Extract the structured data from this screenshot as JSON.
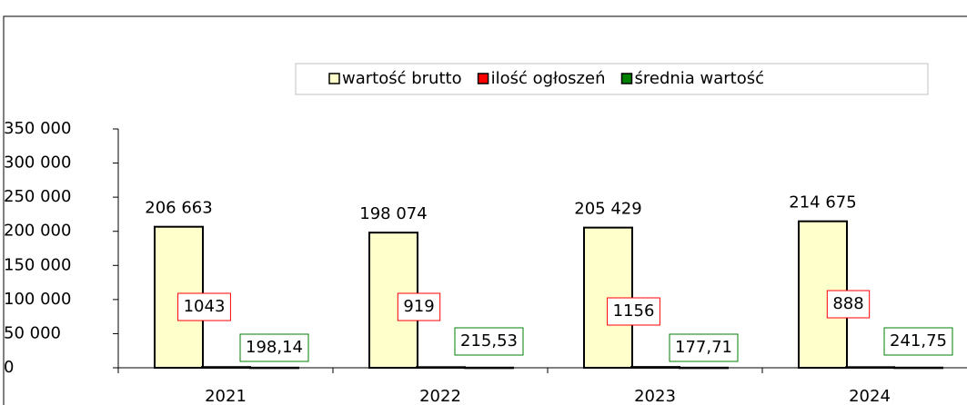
{
  "chart_data": {
    "type": "bar",
    "categories": [
      "2021",
      "2022",
      "2023",
      "2024"
    ],
    "series": [
      {
        "name": "wartość brutto",
        "color": "#ffffcc",
        "values": [
          206663,
          198074,
          205429,
          214675
        ],
        "value_labels": [
          "206 663",
          "198 074",
          "205 429",
          "214 675"
        ]
      },
      {
        "name": "ilość ogłoszeń",
        "color": "#ff0000",
        "values": [
          1043,
          919,
          1156,
          888
        ]
      },
      {
        "name": "średnia wartość",
        "color": "#008000",
        "values": [
          198.14,
          215.53,
          177.71,
          241.75
        ],
        "value_labels": [
          "198,14",
          "215,53",
          "177,71",
          "241,75"
        ]
      }
    ],
    "ylim": [
      0,
      350000
    ],
    "yticks": [
      {
        "value": 0,
        "label": "0"
      },
      {
        "value": 50000,
        "label": "50 000"
      },
      {
        "value": 100000,
        "label": "100 000"
      },
      {
        "value": 150000,
        "label": "150 000"
      },
      {
        "value": 200000,
        "label": "200 000"
      },
      {
        "value": 250000,
        "label": "250 000"
      },
      {
        "value": 300000,
        "label": "300 000"
      },
      {
        "value": 350000,
        "label": "350 000"
      }
    ],
    "legend": "top-right"
  }
}
